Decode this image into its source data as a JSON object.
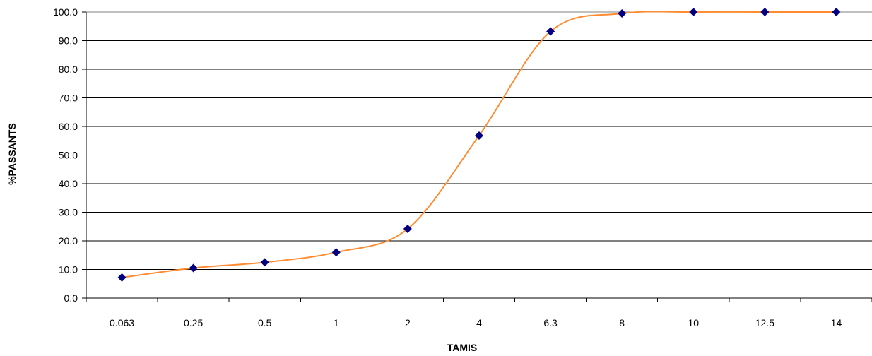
{
  "chart_data": {
    "type": "line",
    "title": "",
    "xlabel": "TAMIS",
    "ylabel": "%PASSANTS",
    "categories": [
      "0.063",
      "0.25",
      "0.5",
      "1",
      "2",
      "4",
      "6.3",
      "8",
      "10",
      "12.5",
      "14"
    ],
    "series": [
      {
        "values": [
          7.2,
          10.5,
          12.5,
          16.0,
          24.2,
          56.8,
          93.2,
          99.5,
          100.0,
          100.0,
          100.0
        ],
        "line_color": "#ff8c33",
        "marker_color": "#000080",
        "marker": "diamond"
      }
    ],
    "ylim": [
      0,
      100
    ],
    "y_ticks": [
      "0.0",
      "10.0",
      "20.0",
      "30.0",
      "40.0",
      "50.0",
      "60.0",
      "70.0",
      "80.0",
      "90.0",
      "100.0"
    ],
    "grid": "horizontal",
    "legend": "none"
  }
}
